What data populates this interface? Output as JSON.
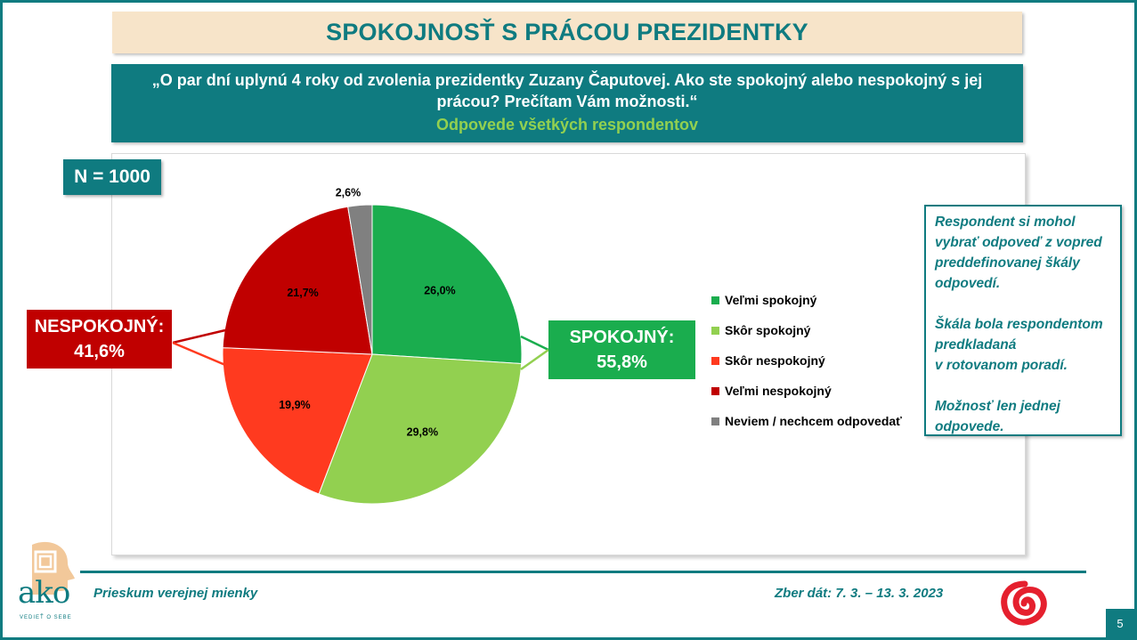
{
  "title": "SPOKOJNOSŤ S PRÁCOU PREZIDENTKY",
  "question": {
    "text": "„O par dní uplynú 4 roky od zvolenia prezidentky Zuzany Čaputovej. Ako ste spokojný alebo nespokojný s jej prácou? Prečítam Vám možnosti.“",
    "subtitle": "Odpovede všetkých respondentov"
  },
  "sample": "N = 1000",
  "callouts": {
    "negative": {
      "label": "NESPOKOJNÝ:",
      "value": "41,6%",
      "color": "#c00000"
    },
    "positive": {
      "label": "SPOKOJNÝ:",
      "value": "55,8%",
      "color": "#1aad4e"
    }
  },
  "note": [
    "Respondent si mohol\nvybrať odpoveď z vopred\npreddefinovanej škály\nodpovedí.",
    "Škála bola respondentom\npredkladaná\nv rotovanom poradí.",
    "Možnosť len jednej\nodpovede."
  ],
  "footer": {
    "left": "Prieskum verejnej mienky",
    "right": "Zber dát: 7. 3. – 13. 3. 2023",
    "page": "5",
    "logo_text": "ako",
    "logo_tagline": "VEDIEŤ O SEBE"
  },
  "chart_data": {
    "type": "pie",
    "categories": [
      "Veľmi spokojný",
      "Skôr spokojný",
      "Skôr nespokojný",
      "Veľmi nespokojný",
      "Neviem / nechcem odpovedať"
    ],
    "values": [
      26.0,
      29.8,
      19.9,
      21.7,
      2.6
    ],
    "labels": [
      "26,0%",
      "29,8%",
      "19,9%",
      "21,7%",
      "2,6%"
    ],
    "colors": [
      "#1aad4e",
      "#92d050",
      "#ff3a1f",
      "#c00000",
      "#808080"
    ],
    "legend_position": "right",
    "start": "top-clockwise"
  }
}
